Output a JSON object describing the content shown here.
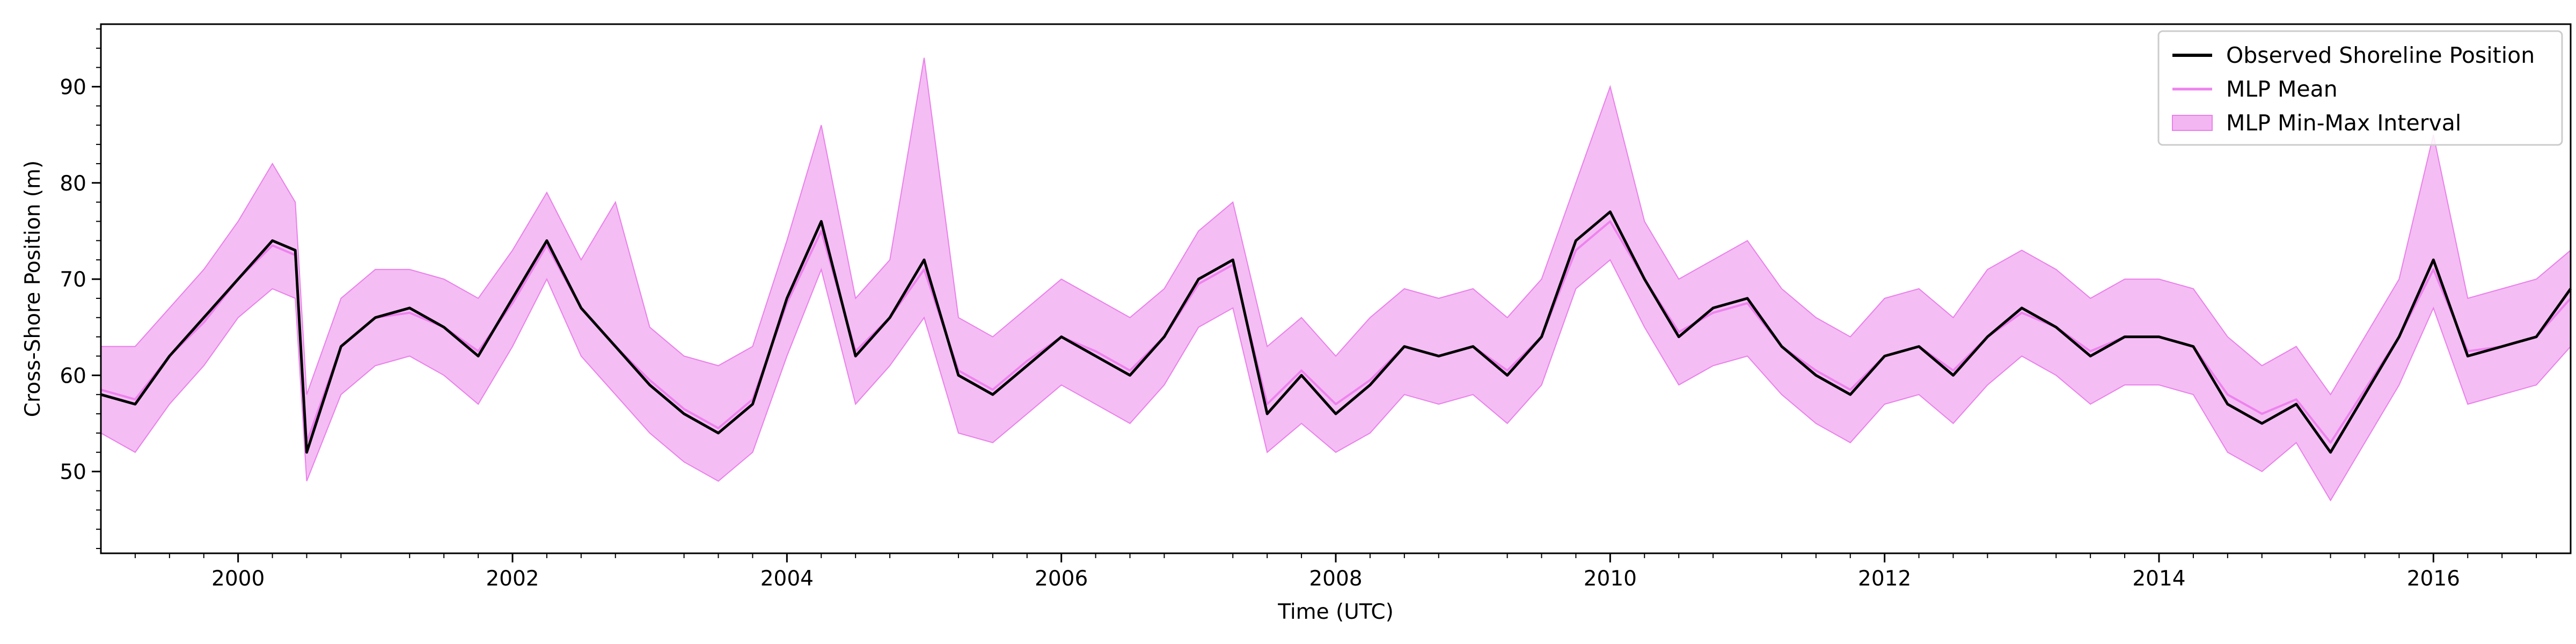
{
  "chart_data": {
    "type": "line",
    "title": "",
    "xlabel": "Time (UTC)",
    "ylabel": "Cross-Shore Position (m)",
    "xlim": [
      "1999-01-01",
      "2017-01-01"
    ],
    "ylim": [
      41.5,
      96.5
    ],
    "x_ticks": [
      "2000",
      "2002",
      "2004",
      "2006",
      "2008",
      "2010",
      "2012",
      "2014",
      "2016"
    ],
    "y_ticks": [
      "50",
      "60",
      "70",
      "80",
      "90"
    ],
    "grid": false,
    "legend": "top-right",
    "colors": {
      "observed": "#000000",
      "mlp_mean": "#ee82ee",
      "interval_fill": "#f3b6f3",
      "interval_edge": "#ea80ea"
    },
    "series": [
      {
        "name": "Observed Shoreline Position",
        "kind": "line",
        "x": [
          "1999-01",
          "1999-04",
          "1999-07",
          "1999-10",
          "2000-01",
          "2000-04",
          "2000-06",
          "2000-07",
          "2000-10",
          "2001-01",
          "2001-04",
          "2001-07",
          "2001-10",
          "2002-01",
          "2002-04",
          "2002-07",
          "2002-10",
          "2003-01",
          "2003-04",
          "2003-07",
          "2003-10",
          "2004-01",
          "2004-04",
          "2004-07",
          "2004-10",
          "2005-01",
          "2005-04",
          "2005-07",
          "2005-10",
          "2006-01",
          "2006-04",
          "2006-07",
          "2006-10",
          "2007-01",
          "2007-04",
          "2007-07",
          "2007-10",
          "2008-01",
          "2008-04",
          "2008-07",
          "2008-10",
          "2009-01",
          "2009-04",
          "2009-07",
          "2009-10",
          "2010-01",
          "2010-04",
          "2010-07",
          "2010-10",
          "2011-01",
          "2011-04",
          "2011-07",
          "2011-10",
          "2012-01",
          "2012-04",
          "2012-07",
          "2012-10",
          "2013-01",
          "2013-04",
          "2013-07",
          "2013-10",
          "2014-01",
          "2014-04",
          "2014-07",
          "2014-10",
          "2015-01",
          "2015-04",
          "2015-07",
          "2015-10",
          "2016-01",
          "2016-04",
          "2016-07",
          "2016-10",
          "2017-01"
        ],
        "values": [
          58,
          57,
          62,
          66,
          70,
          74,
          73,
          52,
          63,
          66,
          67,
          65,
          62,
          68,
          74,
          67,
          63,
          59,
          56,
          54,
          57,
          68,
          76,
          62,
          66,
          72,
          60,
          58,
          61,
          64,
          62,
          60,
          64,
          70,
          72,
          56,
          60,
          56,
          59,
          63,
          62,
          63,
          60,
          64,
          74,
          77,
          70,
          64,
          67,
          68,
          63,
          60,
          58,
          62,
          63,
          60,
          64,
          67,
          65,
          62,
          64,
          64,
          63,
          57,
          55,
          57,
          52,
          58,
          64,
          72,
          62,
          63,
          64,
          69
        ]
      },
      {
        "name": "MLP Mean",
        "kind": "line",
        "x": [
          "1999-01",
          "1999-04",
          "1999-07",
          "1999-10",
          "2000-01",
          "2000-04",
          "2000-06",
          "2000-07",
          "2000-10",
          "2001-01",
          "2001-04",
          "2001-07",
          "2001-10",
          "2002-01",
          "2002-04",
          "2002-07",
          "2002-10",
          "2003-01",
          "2003-04",
          "2003-07",
          "2003-10",
          "2004-01",
          "2004-04",
          "2004-07",
          "2004-10",
          "2005-01",
          "2005-04",
          "2005-07",
          "2005-10",
          "2006-01",
          "2006-04",
          "2006-07",
          "2006-10",
          "2007-01",
          "2007-04",
          "2007-07",
          "2007-10",
          "2008-01",
          "2008-04",
          "2008-07",
          "2008-10",
          "2009-01",
          "2009-04",
          "2009-07",
          "2009-10",
          "2010-01",
          "2010-04",
          "2010-07",
          "2010-10",
          "2011-01",
          "2011-04",
          "2011-07",
          "2011-10",
          "2012-01",
          "2012-04",
          "2012-07",
          "2012-10",
          "2013-01",
          "2013-04",
          "2013-07",
          "2013-10",
          "2014-01",
          "2014-04",
          "2014-07",
          "2014-10",
          "2015-01",
          "2015-04",
          "2015-07",
          "2015-10",
          "2016-01",
          "2016-04",
          "2016-07",
          "2016-10",
          "2017-01"
        ],
        "values": [
          58.5,
          57.5,
          62,
          65.5,
          70,
          73.5,
          72.5,
          53,
          63,
          66,
          66.5,
          65,
          62.5,
          67.5,
          73.5,
          67,
          63,
          59.5,
          56.5,
          54.5,
          57.5,
          67.5,
          75,
          62.5,
          66,
          71,
          60.5,
          58.5,
          61.5,
          64,
          62.5,
          60.5,
          64,
          69.5,
          71.5,
          57,
          60.5,
          57,
          59.5,
          63,
          62,
          63,
          60.5,
          64,
          73,
          76,
          70,
          64.5,
          66.5,
          67.5,
          63,
          60.5,
          58.5,
          62,
          63,
          60.5,
          64,
          66.5,
          65,
          62.5,
          64,
          64,
          63,
          58,
          56,
          57.5,
          53,
          58.5,
          64,
          71,
          62.5,
          63,
          64,
          68
        ]
      },
      {
        "name": "MLP Min-Max Interval",
        "kind": "band",
        "x": [
          "1999-01",
          "1999-04",
          "1999-07",
          "1999-10",
          "2000-01",
          "2000-04",
          "2000-06",
          "2000-07",
          "2000-10",
          "2001-01",
          "2001-04",
          "2001-07",
          "2001-10",
          "2002-01",
          "2002-04",
          "2002-07",
          "2002-10",
          "2003-01",
          "2003-04",
          "2003-07",
          "2003-10",
          "2004-01",
          "2004-04",
          "2004-07",
          "2004-10",
          "2005-01",
          "2005-04",
          "2005-07",
          "2005-10",
          "2006-01",
          "2006-04",
          "2006-07",
          "2006-10",
          "2007-01",
          "2007-04",
          "2007-07",
          "2007-10",
          "2008-01",
          "2008-04",
          "2008-07",
          "2008-10",
          "2009-01",
          "2009-04",
          "2009-07",
          "2009-10",
          "2010-01",
          "2010-04",
          "2010-07",
          "2010-10",
          "2011-01",
          "2011-04",
          "2011-07",
          "2011-10",
          "2012-01",
          "2012-04",
          "2012-07",
          "2012-10",
          "2013-01",
          "2013-04",
          "2013-07",
          "2013-10",
          "2014-01",
          "2014-04",
          "2014-07",
          "2014-10",
          "2015-01",
          "2015-04",
          "2015-07",
          "2015-10",
          "2016-01",
          "2016-04",
          "2016-07",
          "2016-10",
          "2017-01"
        ],
        "lower": [
          54,
          52,
          57,
          61,
          66,
          69,
          68,
          49,
          58,
          61,
          62,
          60,
          57,
          63,
          70,
          62,
          58,
          54,
          51,
          49,
          52,
          62,
          71,
          57,
          61,
          66,
          54,
          53,
          56,
          59,
          57,
          55,
          59,
          65,
          67,
          52,
          55,
          52,
          54,
          58,
          57,
          58,
          55,
          59,
          69,
          72,
          65,
          59,
          61,
          62,
          58,
          55,
          53,
          57,
          58,
          55,
          59,
          62,
          60,
          57,
          59,
          59,
          58,
          52,
          50,
          53,
          47,
          53,
          59,
          67,
          57,
          58,
          59,
          63
        ],
        "upper": [
          63,
          63,
          67,
          71,
          76,
          82,
          78,
          58,
          68,
          71,
          71,
          70,
          68,
          73,
          79,
          72,
          78,
          65,
          62,
          61,
          63,
          74,
          86,
          68,
          72,
          93,
          66,
          64,
          67,
          70,
          68,
          66,
          69,
          75,
          78,
          63,
          66,
          62,
          66,
          69,
          68,
          69,
          66,
          70,
          80,
          90,
          76,
          70,
          72,
          74,
          69,
          66,
          64,
          68,
          69,
          66,
          71,
          73,
          71,
          68,
          70,
          70,
          69,
          64,
          61,
          63,
          58,
          64,
          70,
          85,
          68,
          69,
          70,
          73
        ]
      }
    ]
  }
}
